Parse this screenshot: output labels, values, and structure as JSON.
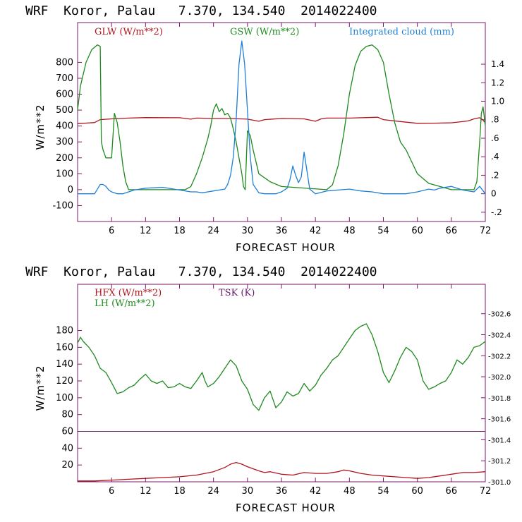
{
  "colors": {
    "red": "#b0141e",
    "green": "#1f8a1f",
    "blue": "#1f7fd6",
    "purple": "#6a1a6e",
    "axis": "#7a1a6a"
  },
  "chart_data": [
    {
      "type": "line",
      "title": "WRF  Koror, Palau   7.370, 134.540  2014022400",
      "xlabel": "FORECAST HOUR",
      "ylabel": "W/m**2",
      "xlim": [
        0,
        72
      ],
      "ylim": [
        -200,
        1050
      ],
      "y2lim": [
        -0.3,
        1.85
      ],
      "xticks": [
        "6",
        "12",
        "18",
        "24",
        "30",
        "36",
        "42",
        "48",
        "54",
        "60",
        "66",
        "72"
      ],
      "yticks": [
        "-100",
        "0",
        "100",
        "200",
        "300",
        "400",
        "500",
        "600",
        "700",
        "800"
      ],
      "y2ticks": [
        "-.2",
        "0",
        ".2",
        ".4",
        ".6",
        ".8",
        "1.0",
        "1.2",
        "1.4"
      ],
      "series": [
        {
          "name": "GLW (W/m**2)",
          "color": "#b0141e",
          "axis": "left",
          "x": [
            0,
            3,
            4,
            6,
            9,
            12,
            18,
            20,
            21,
            24,
            27,
            30,
            32,
            33,
            36,
            40,
            42,
            43,
            44,
            48,
            51,
            53,
            54,
            57,
            60,
            63,
            66,
            69,
            70,
            71,
            71.5,
            72
          ],
          "y": [
            415,
            422,
            440,
            445,
            450,
            453,
            452,
            443,
            450,
            447,
            447,
            443,
            430,
            440,
            447,
            445,
            430,
            445,
            450,
            450,
            453,
            455,
            440,
            428,
            417,
            418,
            420,
            432,
            445,
            452,
            440,
            420
          ]
        },
        {
          "name": "GSW (W/m**2)",
          "color": "#1f8a1f",
          "axis": "left",
          "x": [
            0,
            0.5,
            1.5,
            2.5,
            3.5,
            4,
            4.2,
            4.5,
            5,
            6,
            6.5,
            7,
            7.5,
            8,
            8.5,
            9,
            10,
            12,
            19,
            20,
            21,
            22,
            23,
            23.5,
            24,
            24.5,
            25,
            25.5,
            26,
            26.5,
            27,
            27.5,
            28,
            28.5,
            29,
            29.3,
            29.6,
            30,
            30.5,
            31,
            32,
            34,
            36,
            44,
            45,
            46,
            47,
            48,
            49,
            50,
            51,
            52,
            53,
            54,
            55,
            56,
            57,
            58,
            60,
            62,
            66,
            69,
            70,
            70.5,
            71,
            71.3,
            71.6,
            72
          ],
          "y": [
            500,
            650,
            800,
            880,
            910,
            900,
            300,
            250,
            200,
            200,
            480,
            420,
            300,
            150,
            50,
            0,
            0,
            0,
            0,
            20,
            100,
            200,
            320,
            400,
            500,
            540,
            490,
            510,
            470,
            480,
            450,
            380,
            300,
            200,
            100,
            20,
            0,
            370,
            340,
            250,
            100,
            50,
            20,
            0,
            30,
            150,
            350,
            600,
            780,
            870,
            900,
            910,
            880,
            800,
            600,
            420,
            300,
            250,
            100,
            40,
            0,
            0,
            0,
            50,
            300,
            480,
            520,
            400
          ]
        },
        {
          "name": "Integrated cloud (mm)",
          "color": "#1f7fd6",
          "axis": "right",
          "x": [
            0,
            1,
            2,
            3,
            3.5,
            4,
            4.5,
            5,
            5.5,
            6,
            7,
            8,
            9,
            10,
            12,
            15,
            18,
            20,
            21,
            22,
            23,
            24,
            25,
            26,
            26.5,
            27,
            27.5,
            28,
            28.5,
            29,
            29.5,
            30,
            30.5,
            31,
            32,
            33,
            34,
            35,
            36,
            37,
            37.5,
            38,
            38.5,
            39,
            39.5,
            40,
            40.5,
            41,
            42,
            44,
            46,
            48,
            50,
            52,
            54,
            56,
            58,
            60,
            62,
            63,
            64,
            66,
            68,
            70,
            71,
            72
          ],
          "y": [
            0,
            0,
            0,
            0,
            0.05,
            0.1,
            0.1,
            0.08,
            0.04,
            0.02,
            0,
            0,
            0.02,
            0.04,
            0.06,
            0.07,
            0.04,
            0.02,
            0.02,
            0.01,
            0.02,
            0.03,
            0.04,
            0.05,
            0.1,
            0.2,
            0.4,
            0.8,
            1.4,
            1.65,
            1.4,
            0.9,
            0.4,
            0.1,
            0.01,
            0,
            0,
            0,
            0.02,
            0.06,
            0.15,
            0.3,
            0.2,
            0.12,
            0.18,
            0.45,
            0.25,
            0.05,
            0,
            0.03,
            0.04,
            0.05,
            0.03,
            0.02,
            0,
            0,
            0,
            0.02,
            0.05,
            0.04,
            0.06,
            0.08,
            0.04,
            0.02,
            0.08,
            0
          ]
        }
      ]
    },
    {
      "type": "line",
      "title": "WRF  Koror, Palau   7.370, 134.540  2014022400",
      "xlabel": "FORECAST HOUR",
      "ylabel": "W/m**2",
      "xlim": [
        0,
        72
      ],
      "ylim": [
        0,
        235
      ],
      "y2lim": [
        301.0,
        302.88
      ],
      "xticks": [
        "6",
        "12",
        "18",
        "24",
        "30",
        "36",
        "42",
        "48",
        "54",
        "60",
        "66",
        "72"
      ],
      "yticks": [
        "20",
        "40",
        "60",
        "80",
        "100",
        "120",
        "140",
        "160",
        "180"
      ],
      "y2ticks": [
        "301.0",
        "301.2",
        "301.4",
        "301.6",
        "301.8",
        "302.0",
        "302.2",
        "302.4",
        "302.6"
      ],
      "reference_line": 60,
      "series": [
        {
          "name": "HFX (W/m**2)",
          "color": "#b0141e",
          "axis": "left",
          "x": [
            0,
            3,
            6,
            9,
            12,
            15,
            18,
            21,
            24,
            26,
            27,
            28,
            29,
            30,
            32,
            33,
            34,
            36,
            38,
            40,
            42,
            44,
            46,
            47,
            48,
            50,
            52,
            54,
            56,
            58,
            60,
            62,
            64,
            66,
            68,
            70,
            72
          ],
          "y": [
            1,
            1,
            2,
            3,
            4,
            5,
            6,
            8,
            12,
            17,
            21,
            23,
            21,
            18,
            13,
            11,
            12,
            9,
            8,
            11,
            10,
            10,
            12,
            14,
            13,
            10,
            8,
            7,
            6,
            5,
            4,
            5,
            7,
            9,
            11,
            11,
            12
          ]
        },
        {
          "name": "LH (W/m**2)",
          "color": "#1f8a1f",
          "axis": "left",
          "x": [
            0,
            0.5,
            1,
            2,
            3,
            4,
            5,
            6,
            7,
            8,
            9,
            10,
            11,
            12,
            13,
            14,
            15,
            16,
            17,
            18,
            19,
            20,
            21,
            22,
            22.5,
            23,
            24,
            25,
            26,
            27,
            28,
            29,
            30,
            31,
            32,
            33,
            34,
            35,
            36,
            37,
            38,
            39,
            40,
            41,
            42,
            43,
            44,
            45,
            46,
            47,
            48,
            49,
            50,
            51,
            52,
            53,
            54,
            55,
            56,
            57,
            58,
            59,
            60,
            61,
            62,
            63,
            64,
            65,
            66,
            67,
            68,
            69,
            70,
            71,
            72
          ],
          "y": [
            165,
            172,
            167,
            160,
            150,
            135,
            130,
            118,
            105,
            107,
            112,
            115,
            122,
            128,
            120,
            117,
            120,
            112,
            113,
            117,
            113,
            111,
            120,
            130,
            120,
            113,
            117,
            125,
            135,
            145,
            138,
            120,
            110,
            92,
            85,
            100,
            108,
            88,
            95,
            107,
            102,
            105,
            117,
            108,
            115,
            127,
            135,
            145,
            150,
            160,
            170,
            180,
            185,
            188,
            175,
            155,
            130,
            118,
            132,
            148,
            160,
            155,
            145,
            120,
            110,
            113,
            117,
            120,
            130,
            145,
            140,
            148,
            160,
            162,
            167
          ]
        }
      ]
    }
  ],
  "panel_top": {
    "title": "WRF  Koror, Palau   7.370, 134.540  2014022400",
    "xlabel": "FORECAST HOUR",
    "ylabel": "W/m**2",
    "legend": [
      "GLW (W/m**2)",
      "GSW (W/m**2)",
      "Integrated cloud (mm)"
    ]
  },
  "panel_bottom": {
    "title": "WRF  Koror, Palau   7.370, 134.540  2014022400",
    "xlabel": "FORECAST HOUR",
    "ylabel": "W/m**2",
    "legend": [
      "HFX (W/m**2)",
      "LH (W/m**2)",
      "TSK (K)"
    ]
  }
}
